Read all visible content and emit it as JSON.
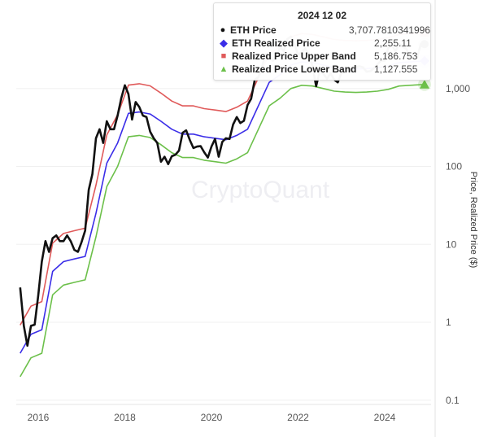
{
  "chart_data": {
    "type": "line",
    "watermark": "CryptoQuant",
    "ylabel": "Price, Realized Price ($)",
    "yscale": "log",
    "ylim": [
      0.1,
      10000
    ],
    "yticks": [
      "0.1",
      "1",
      "10",
      "100",
      "1,000"
    ],
    "xticks": [
      "2016",
      "2018",
      "2020",
      "2022",
      "2024"
    ],
    "xlim": [
      "2015-08",
      "2024-12-02"
    ],
    "grid": "horizontal",
    "colors": {
      "price": "#111111",
      "realized": "#3b2ee8",
      "upper": "#e05a5a",
      "lower": "#6cc04a"
    },
    "series": [
      {
        "name": "ETH Price",
        "key": "price",
        "x": [
          "2015-08",
          "2015-09",
          "2015-10",
          "2015-11",
          "2015-12",
          "2016-01",
          "2016-02",
          "2016-03",
          "2016-04",
          "2016-05",
          "2016-06",
          "2016-07",
          "2016-08",
          "2016-09",
          "2016-10",
          "2016-11",
          "2016-12",
          "2017-01",
          "2017-02",
          "2017-03",
          "2017-04",
          "2017-05",
          "2017-06",
          "2017-07",
          "2017-08",
          "2017-09",
          "2017-10",
          "2017-11",
          "2017-12",
          "2018-01",
          "2018-02",
          "2018-03",
          "2018-04",
          "2018-05",
          "2018-06",
          "2018-07",
          "2018-08",
          "2018-09",
          "2018-10",
          "2018-11",
          "2018-12",
          "2019-01",
          "2019-02",
          "2019-03",
          "2019-04",
          "2019-05",
          "2019-06",
          "2019-07",
          "2019-08",
          "2019-09",
          "2019-10",
          "2019-11",
          "2019-12",
          "2020-01",
          "2020-02",
          "2020-03",
          "2020-04",
          "2020-05",
          "2020-06",
          "2020-07",
          "2020-08",
          "2020-09",
          "2020-10",
          "2020-11",
          "2020-12",
          "2021-01",
          "2021-02",
          "2021-03",
          "2021-04",
          "2021-05",
          "2021-06",
          "2021-07",
          "2021-08",
          "2021-09",
          "2021-10",
          "2021-11",
          "2021-12",
          "2022-01",
          "2022-02",
          "2022-03",
          "2022-04",
          "2022-05",
          "2022-06",
          "2022-07",
          "2022-08",
          "2022-09",
          "2022-10",
          "2022-11",
          "2022-12",
          "2023-01",
          "2023-02",
          "2023-03",
          "2023-04",
          "2023-05",
          "2023-06",
          "2023-07",
          "2023-08",
          "2023-09",
          "2023-10",
          "2023-11",
          "2023-12",
          "2024-01",
          "2024-02",
          "2024-03",
          "2024-04",
          "2024-05",
          "2024-06",
          "2024-07",
          "2024-08",
          "2024-09",
          "2024-10",
          "2024-11",
          "2024-12-02"
        ],
        "y": [
          2.8,
          0.9,
          0.5,
          0.9,
          0.93,
          2.2,
          6,
          11,
          8,
          12,
          13,
          11,
          11,
          13,
          11,
          8.5,
          8,
          10.7,
          15,
          50,
          80,
          230,
          300,
          200,
          380,
          300,
          300,
          450,
          750,
          1100,
          850,
          400,
          670,
          580,
          450,
          430,
          280,
          230,
          200,
          115,
          133,
          107,
          135,
          141,
          160,
          270,
          290,
          218,
          172,
          180,
          182,
          152,
          130,
          180,
          225,
          133,
          206,
          230,
          225,
          345,
          430,
          360,
          385,
          615,
          740,
          1300,
          1400,
          1900,
          2770,
          2700,
          2270,
          2530,
          3430,
          3000,
          4300,
          4630,
          3680,
          2690,
          2920,
          3280,
          2730,
          1940,
          1070,
          1680,
          1550,
          1330,
          1570,
          1300,
          1200,
          1590,
          1600,
          1820,
          1870,
          1870,
          1930,
          1860,
          1640,
          1670,
          1810,
          2050,
          2280,
          2280,
          3340,
          3600,
          3000,
          3760,
          3430,
          3230,
          2520,
          2600,
          2510,
          3700,
          3707.7810341996
        ]
      },
      {
        "name": "ETH Realized Price",
        "key": "realized",
        "x": [
          "2015-08",
          "2015-11",
          "2016-02",
          "2016-05",
          "2016-08",
          "2016-11",
          "2017-02",
          "2017-05",
          "2017-08",
          "2017-11",
          "2018-02",
          "2018-05",
          "2018-08",
          "2018-11",
          "2019-02",
          "2019-05",
          "2019-08",
          "2019-11",
          "2020-02",
          "2020-05",
          "2020-08",
          "2020-11",
          "2021-02",
          "2021-05",
          "2021-08",
          "2021-11",
          "2022-02",
          "2022-05",
          "2022-08",
          "2022-11",
          "2023-02",
          "2023-05",
          "2023-08",
          "2023-11",
          "2024-02",
          "2024-05",
          "2024-08",
          "2024-12-02"
        ],
        "y": [
          0.4,
          0.7,
          0.8,
          4.5,
          6,
          6.5,
          7,
          25,
          110,
          200,
          480,
          500,
          470,
          380,
          300,
          260,
          260,
          240,
          230,
          220,
          250,
          300,
          600,
          1200,
          1500,
          2000,
          2200,
          2150,
          2000,
          1850,
          1800,
          1780,
          1800,
          1850,
          1950,
          2150,
          2200,
          2255.11
        ]
      },
      {
        "name": "Realized Price Upper Band",
        "key": "upper",
        "x": [
          "2015-08",
          "2015-11",
          "2016-02",
          "2016-05",
          "2016-08",
          "2016-11",
          "2017-02",
          "2017-05",
          "2017-08",
          "2017-11",
          "2018-02",
          "2018-05",
          "2018-08",
          "2018-11",
          "2019-02",
          "2019-05",
          "2019-08",
          "2019-11",
          "2020-02",
          "2020-05",
          "2020-08",
          "2020-11",
          "2021-02",
          "2021-05",
          "2021-08",
          "2021-11",
          "2022-02",
          "2022-05",
          "2022-08",
          "2022-11",
          "2023-02",
          "2023-05",
          "2023-08",
          "2023-11",
          "2024-02",
          "2024-05",
          "2024-08",
          "2024-12-02"
        ],
        "y": [
          0.92,
          1.61,
          1.84,
          10.35,
          13.8,
          14.95,
          16.1,
          57.5,
          253,
          460,
          1104,
          1150,
          1081,
          874,
          690,
          598,
          598,
          552,
          529,
          506,
          575,
          690,
          1380,
          2760,
          3450,
          4600,
          5060,
          4945,
          4600,
          4255,
          4140,
          4094,
          4140,
          4255,
          4485,
          4945,
          5060,
          5186.753
        ]
      },
      {
        "name": "Realized Price Lower Band",
        "key": "lower",
        "x": [
          "2015-08",
          "2015-11",
          "2016-02",
          "2016-05",
          "2016-08",
          "2016-11",
          "2017-02",
          "2017-05",
          "2017-08",
          "2017-11",
          "2018-02",
          "2018-05",
          "2018-08",
          "2018-11",
          "2019-02",
          "2019-05",
          "2019-08",
          "2019-11",
          "2020-02",
          "2020-05",
          "2020-08",
          "2020-11",
          "2021-02",
          "2021-05",
          "2021-08",
          "2021-11",
          "2022-02",
          "2022-05",
          "2022-08",
          "2022-11",
          "2023-02",
          "2023-05",
          "2023-08",
          "2023-11",
          "2024-02",
          "2024-05",
          "2024-08",
          "2024-12-02"
        ],
        "y": [
          0.2,
          0.35,
          0.4,
          2.25,
          3,
          3.25,
          3.5,
          12.5,
          55,
          100,
          240,
          250,
          235,
          190,
          150,
          130,
          130,
          120,
          115,
          110,
          125,
          150,
          300,
          600,
          750,
          1000,
          1100,
          1075,
          1000,
          925,
          900,
          890,
          900,
          925,
          975,
          1075,
          1100,
          1127.555
        ]
      }
    ],
    "tooltip": {
      "date": "2024 12 02",
      "rows": [
        {
          "symbol": "circle",
          "label": "ETH Price",
          "value": "3,707.7810341996"
        },
        {
          "symbol": "diamond",
          "label": "ETH Realized Price",
          "value": "2,255.11"
        },
        {
          "symbol": "square",
          "label": "Realized Price Upper Band",
          "value": "5,186.753"
        },
        {
          "symbol": "triangle",
          "label": "Realized Price Lower Band",
          "value": "1,127.555"
        }
      ]
    }
  }
}
